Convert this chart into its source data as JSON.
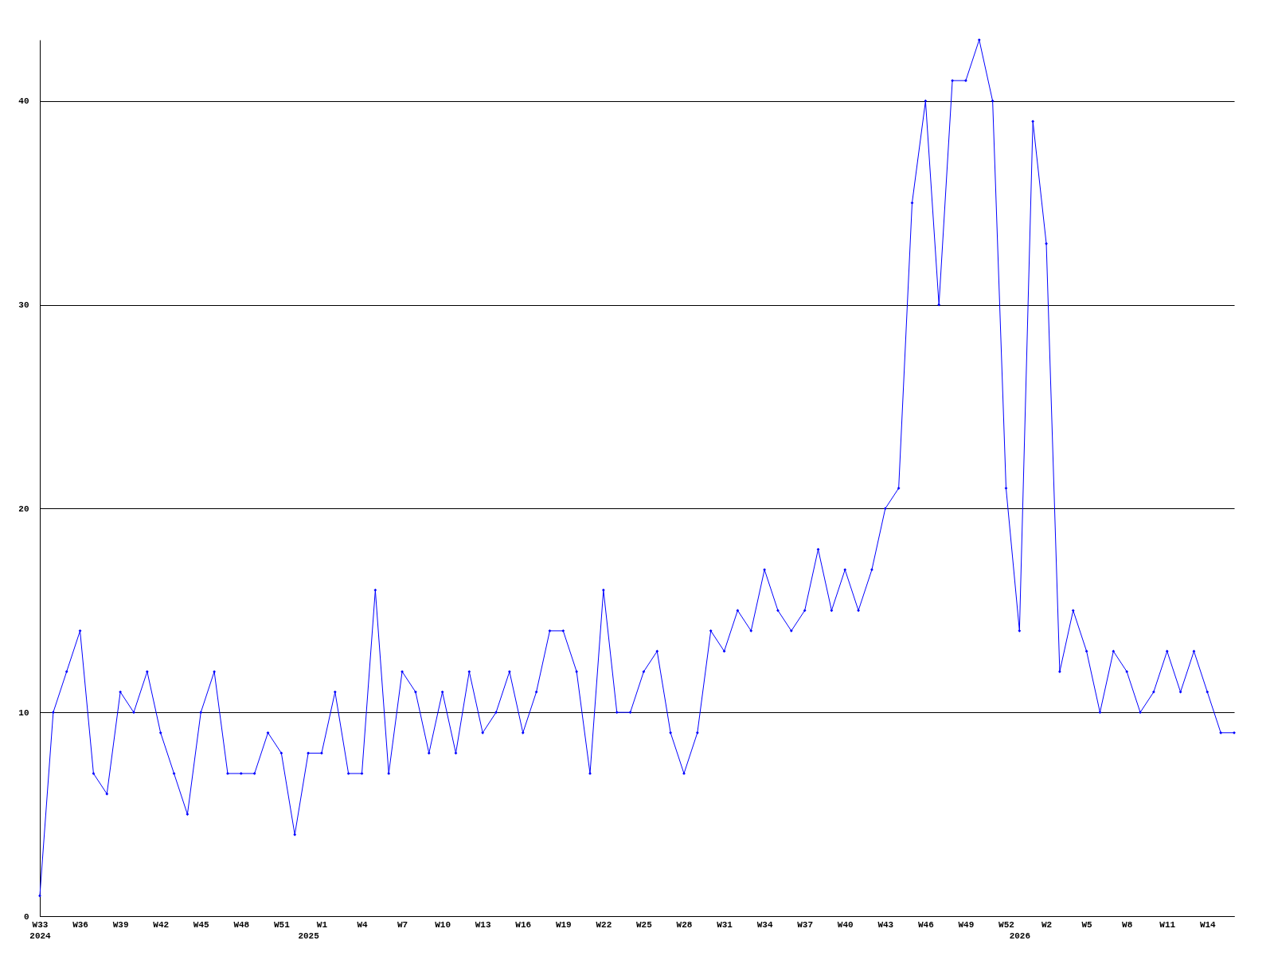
{
  "chart_data": {
    "type": "line",
    "categories": [
      "W33\n2024",
      null,
      null,
      "W36",
      null,
      null,
      "W39",
      null,
      null,
      "W42",
      null,
      null,
      "W45",
      null,
      null,
      "W48",
      null,
      null,
      "W51",
      null,
      "\n2025",
      "W1",
      null,
      null,
      "W4",
      null,
      null,
      "W7",
      null,
      null,
      "W10",
      null,
      null,
      "W13",
      null,
      null,
      "W16",
      null,
      null,
      "W19",
      null,
      null,
      "W22",
      null,
      null,
      "W25",
      null,
      null,
      "W28",
      null,
      null,
      "W31",
      null,
      null,
      "W34",
      null,
      null,
      "W37",
      null,
      null,
      "W40",
      null,
      null,
      "W43",
      null,
      null,
      "W46",
      null,
      null,
      "W49",
      null,
      null,
      "W52",
      "\n2026",
      null,
      "W2",
      null,
      null,
      "W5",
      null,
      null,
      "W8",
      null,
      null,
      "W11",
      null,
      null,
      "W14",
      null,
      null
    ],
    "series": [
      {
        "color": "#0000ff",
        "values": [
          1,
          10,
          12,
          14,
          7,
          6,
          11,
          10,
          12,
          9,
          7,
          5,
          10,
          12,
          7,
          7,
          7,
          9,
          8,
          4,
          8,
          8,
          11,
          7,
          7,
          16,
          7,
          12,
          11,
          8,
          11,
          8,
          12,
          9,
          10,
          12,
          9,
          11,
          14,
          14,
          12,
          7,
          16,
          10,
          10,
          12,
          13,
          9,
          7,
          9,
          14,
          13,
          15,
          14,
          17,
          15,
          14,
          15,
          18,
          15,
          17,
          15,
          17,
          20,
          21,
          35,
          40,
          30,
          41,
          41,
          43,
          40,
          21,
          14,
          39,
          33,
          12,
          15,
          13,
          10,
          13,
          12,
          10,
          11,
          13,
          11,
          13,
          11,
          9,
          9
        ]
      }
    ],
    "ylim": [
      0,
      43
    ],
    "yticks": [
      0,
      10,
      20,
      30,
      40
    ],
    "grid": "y",
    "marker": "diamond",
    "line_style": "solid"
  }
}
